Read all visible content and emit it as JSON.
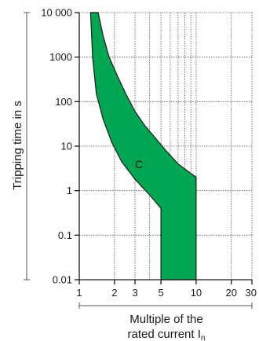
{
  "chart_data": {
    "type": "area",
    "title": "",
    "xlabel_line1": "Multiple of the",
    "xlabel_line2": "rated current I",
    "xlabel_subscript": "n",
    "ylabel": "Tripping time in s",
    "x_scale": "log",
    "y_scale": "log",
    "xlim": [
      1,
      30
    ],
    "ylim": [
      0.01,
      10000
    ],
    "x_ticks": [
      {
        "value": 1,
        "label": "1"
      },
      {
        "value": 2,
        "label": "2"
      },
      {
        "value": 3,
        "label": "3"
      },
      {
        "value": 5,
        "label": "5"
      },
      {
        "value": 10,
        "label": "10"
      },
      {
        "value": 20,
        "label": "20"
      },
      {
        "value": 30,
        "label": "30"
      }
    ],
    "x_gridlines": [
      1,
      2,
      3,
      4,
      5,
      6,
      7,
      8,
      9,
      10,
      20,
      30
    ],
    "y_ticks": [
      {
        "value": 0.01,
        "label": "0.01"
      },
      {
        "value": 0.1,
        "label": "0.1"
      },
      {
        "value": 1,
        "label": "1"
      },
      {
        "value": 10,
        "label": "10"
      },
      {
        "value": 100,
        "label": "100"
      },
      {
        "value": 1000,
        "label": "1000"
      },
      {
        "value": 10000,
        "label": "10 000"
      }
    ],
    "grid": true,
    "series": [
      {
        "name": "C",
        "color": "#00a651",
        "upper_boundary": [
          {
            "x": 1.45,
            "y": 10000
          },
          {
            "x": 1.6,
            "y": 3000
          },
          {
            "x": 1.8,
            "y": 1000
          },
          {
            "x": 2.1,
            "y": 400
          },
          {
            "x": 2.5,
            "y": 150
          },
          {
            "x": 3.0,
            "y": 60
          },
          {
            "x": 3.6,
            "y": 30
          },
          {
            "x": 4.5,
            "y": 15
          },
          {
            "x": 5.5,
            "y": 8
          },
          {
            "x": 7.0,
            "y": 4
          },
          {
            "x": 10,
            "y": 2
          },
          {
            "x": 10,
            "y": 0.01
          }
        ],
        "lower_boundary": [
          {
            "x": 1.25,
            "y": 10000
          },
          {
            "x": 1.3,
            "y": 1000
          },
          {
            "x": 1.4,
            "y": 150
          },
          {
            "x": 1.6,
            "y": 40
          },
          {
            "x": 1.9,
            "y": 12
          },
          {
            "x": 2.3,
            "y": 4.5
          },
          {
            "x": 3.0,
            "y": 1.8
          },
          {
            "x": 4.0,
            "y": 0.8
          },
          {
            "x": 5,
            "y": 0.4
          },
          {
            "x": 5,
            "y": 0.01
          }
        ]
      }
    ]
  }
}
